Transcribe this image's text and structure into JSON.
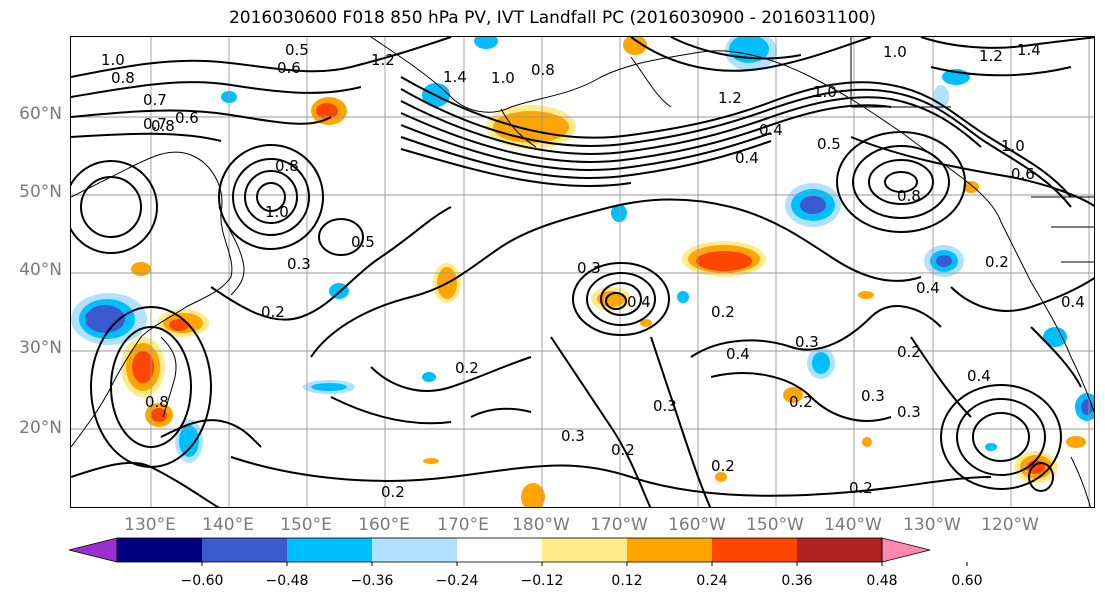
{
  "title": "2016030600 F018 850 hPa PV, IVT Landfall PC (2016030900 - 2016031100)",
  "lat_labels": [
    "60°N",
    "50°N",
    "40°N",
    "30°N",
    "20°N"
  ],
  "lon_labels": [
    "130°E",
    "140°E",
    "150°E",
    "160°E",
    "170°E",
    "180°W",
    "170°W",
    "160°W",
    "150°W",
    "140°W",
    "130°W",
    "120°W"
  ],
  "colorbar": {
    "colors": [
      "#9b30d0",
      "#00007f",
      "#3a5bd0",
      "#00bfff",
      "#b0e2ff",
      "#ffffff",
      "#ffeb8a",
      "#ffa500",
      "#ff4500",
      "#b22222",
      "#ff88b0"
    ],
    "tick_labels": [
      "−0.60",
      "−0.48",
      "−0.36",
      "−0.24",
      "−0.12",
      "0.12",
      "0.24",
      "0.36",
      "0.48",
      "0.60"
    ]
  },
  "contour_labels": [
    "1.0",
    "0.8",
    "0.5",
    "0.6",
    "1.2",
    "1.4",
    "1.0",
    "0.8",
    "0.7",
    "0.6",
    "0.8",
    "1.2",
    "1.0",
    "0.4",
    "0.5",
    "0.4",
    "1.0",
    "1.2",
    "1.4",
    "1.0",
    "0.6",
    "0.8",
    "0.8",
    "1.0",
    "0.5",
    "0.3",
    "0.2",
    "0.3",
    "0.4",
    "0.2",
    "0.4",
    "0.2",
    "0.2",
    "0.3",
    "0.2",
    "0.3",
    "0.2",
    "0.2",
    "0.2",
    "0.4",
    "0.3",
    "0.4",
    "0.3",
    "0.2",
    "0.3",
    "0.2",
    "0.4",
    "0.7",
    "0.8"
  ]
}
